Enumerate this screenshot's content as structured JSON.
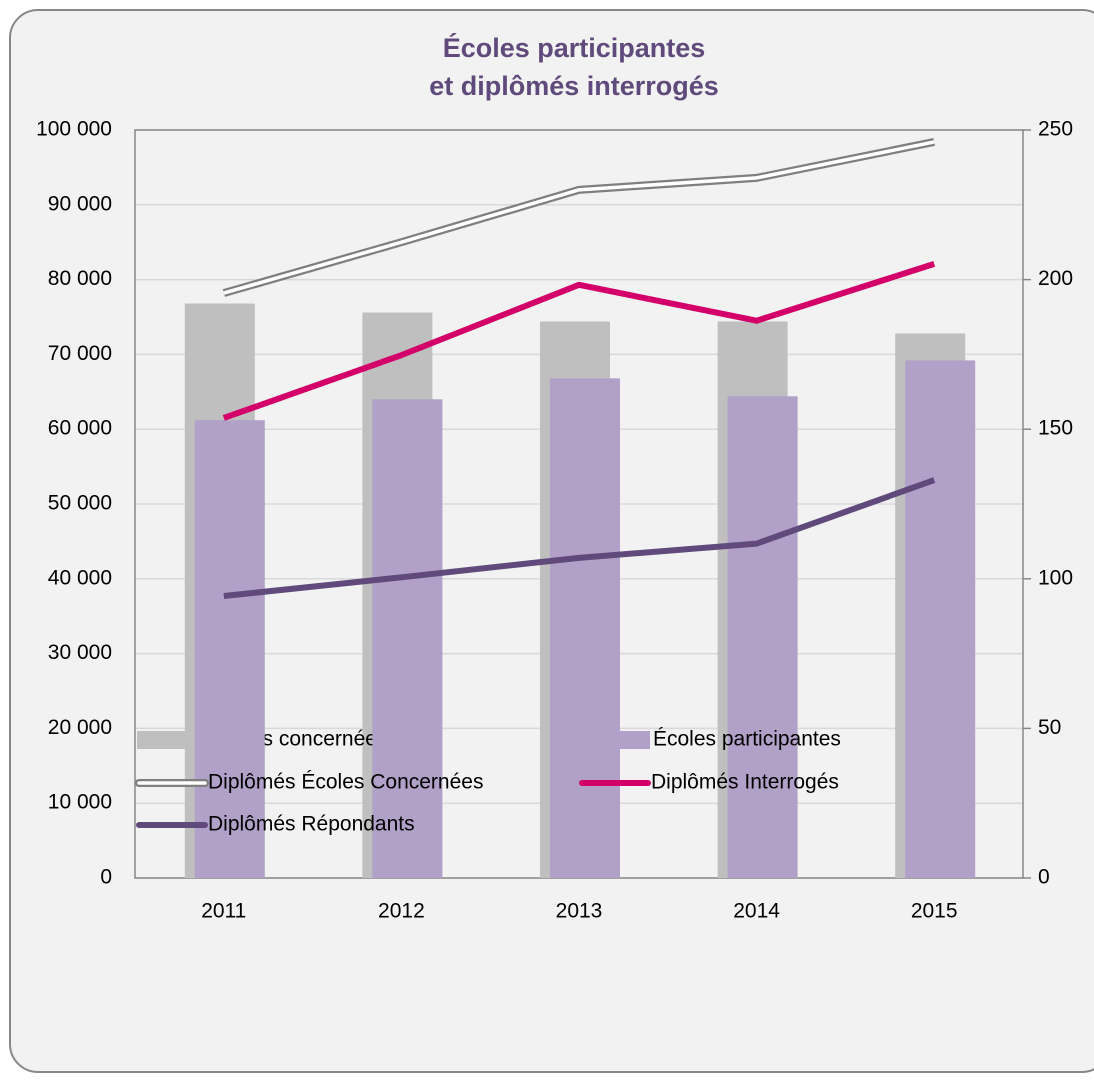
{
  "chart_data": {
    "type": "combo",
    "title": [
      "Écoles participantes",
      "et diplômés interrogés"
    ],
    "categories": [
      "2011",
      "2012",
      "2013",
      "2014",
      "2015"
    ],
    "ylim": [
      0,
      100000
    ],
    "yticks": [
      {
        "value": 0,
        "label": "0"
      },
      {
        "value": 10000,
        "label": "10 000"
      },
      {
        "value": 20000,
        "label": "20 000"
      },
      {
        "value": 30000,
        "label": "30 000"
      },
      {
        "value": 40000,
        "label": "40 000"
      },
      {
        "value": 50000,
        "label": "50 000"
      },
      {
        "value": 60000,
        "label": "60 000"
      },
      {
        "value": 70000,
        "label": "70 000"
      },
      {
        "value": 80000,
        "label": "80 000"
      },
      {
        "value": 90000,
        "label": "90 000"
      },
      {
        "value": 100000,
        "label": "100 000"
      }
    ],
    "y2lim": [
      0,
      250
    ],
    "y2ticks": [
      0,
      50,
      100,
      150,
      200,
      250
    ],
    "grid": true,
    "series": [
      {
        "name": "Écoles concernées",
        "type": "bar",
        "axis": "y2",
        "color": "#bfbfbf",
        "values": [
          192,
          189,
          186,
          186,
          182
        ]
      },
      {
        "name": "Écoles participantes",
        "type": "bar",
        "axis": "y2",
        "color": "#b1a0c7",
        "values": [
          153,
          160,
          167,
          161,
          173
        ]
      },
      {
        "name": "Diplômés Écoles Concernées",
        "type": "double-line",
        "color": "#7f7f7f",
        "values": [
          78200,
          85000,
          92000,
          93600,
          98400
        ]
      },
      {
        "name": "Diplômés Interrogés",
        "type": "line",
        "color": "#d4006a",
        "values": [
          61500,
          69900,
          79300,
          74500,
          82100
        ]
      },
      {
        "name": "Diplômés Répondants",
        "type": "line",
        "color": "#604a7b",
        "values": [
          37700,
          40200,
          42800,
          44700,
          53200
        ]
      }
    ]
  }
}
